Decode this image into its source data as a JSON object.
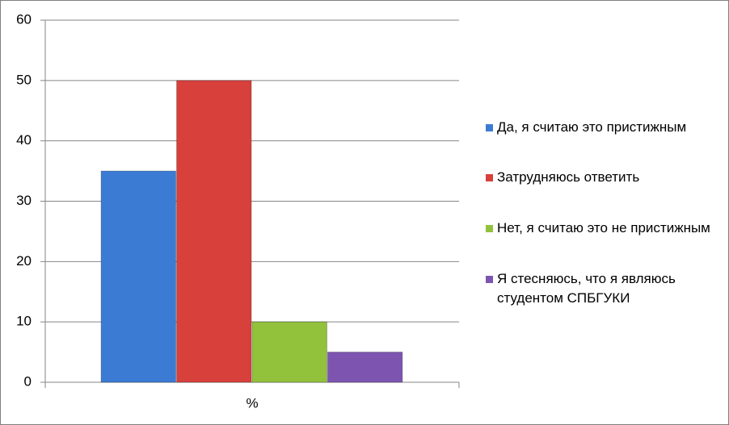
{
  "chart_data": {
    "type": "bar",
    "categories": [
      "%"
    ],
    "series": [
      {
        "name": "Да, я считаю это пристижным",
        "color": "#3c7bd4",
        "values": [
          35
        ]
      },
      {
        "name": "Затрудняюсь ответить",
        "color": "#d8403c",
        "values": [
          50
        ]
      },
      {
        "name": "Нет, я считаю это не пристижным",
        "color": "#92c13c",
        "values": [
          10
        ]
      },
      {
        "name": "Я стесняюсь, что я являюсь студентом СПБГУКИ",
        "color": "#7d55b0",
        "values": [
          5
        ]
      }
    ],
    "ylim": [
      0,
      60
    ],
    "yticks": [
      0,
      10,
      20,
      30,
      40,
      50,
      60
    ],
    "grid": true,
    "legend": "right"
  }
}
